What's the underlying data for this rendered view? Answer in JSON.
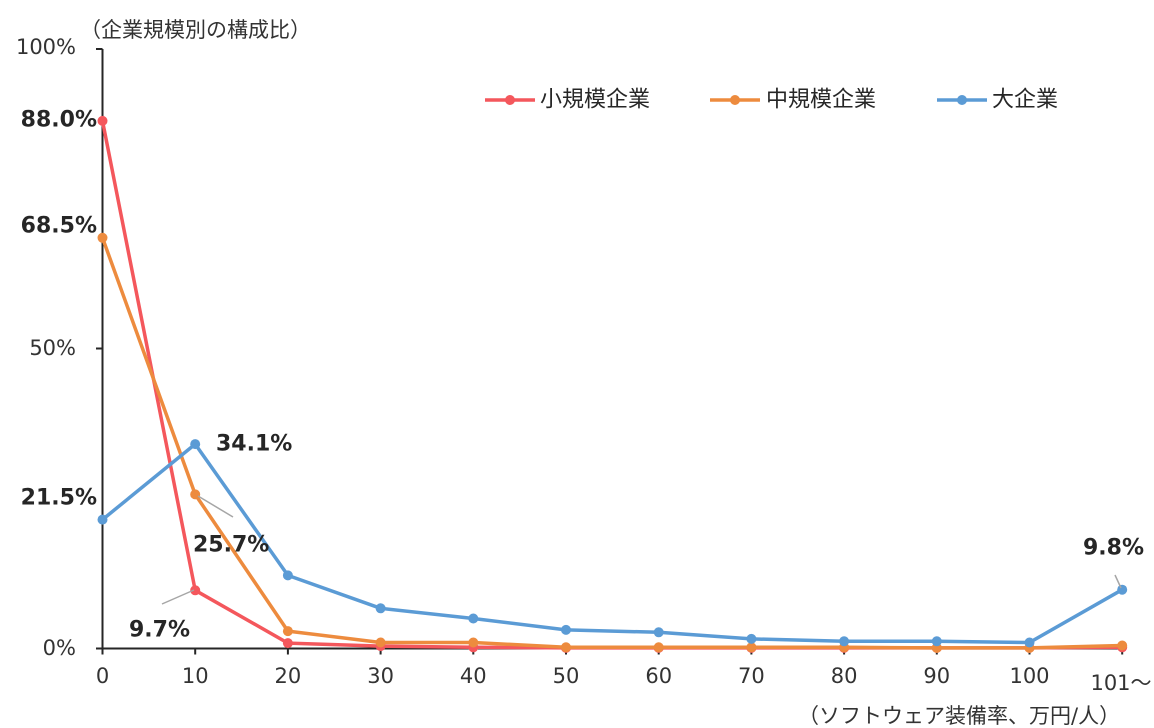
{
  "chart_data": {
    "type": "line",
    "title": "",
    "ylabel": "（企業規模別の構成比）",
    "xlabel": "（ソフトウェア装備率、万円/人）",
    "categories": [
      "0",
      "10",
      "20",
      "30",
      "40",
      "50",
      "60",
      "70",
      "80",
      "90",
      "100",
      "101～"
    ],
    "yticks": [
      "0%",
      "50%",
      "100%"
    ],
    "ylim": [
      0,
      100
    ],
    "grid": false,
    "legend_position": "top-right",
    "series": [
      {
        "name": "小規模企業",
        "color": "#F4575C",
        "values": [
          88.0,
          9.7,
          0.9,
          0.4,
          0.2,
          0.1,
          0.1,
          0.1,
          0.1,
          0.1,
          0.1,
          0.2
        ]
      },
      {
        "name": "中規模企業",
        "color": "#ED8B3E",
        "values": [
          68.5,
          25.7,
          2.9,
          1.0,
          1.0,
          0.2,
          0.2,
          0.2,
          0.2,
          0.1,
          0.1,
          0.5
        ]
      },
      {
        "name": "大企業",
        "color": "#5B9BD5",
        "values": [
          21.5,
          34.1,
          12.2,
          6.7,
          5.0,
          3.1,
          2.7,
          1.6,
          1.2,
          1.2,
          1.0,
          9.8
        ]
      }
    ],
    "annotations": [
      {
        "text": "88.0%",
        "series": "小規模企業",
        "category": "0"
      },
      {
        "text": "68.5%",
        "series": "中規模企業",
        "category": "0"
      },
      {
        "text": "21.5%",
        "series": "大企業",
        "category": "0"
      },
      {
        "text": "34.1%",
        "series": "大企業",
        "category": "10"
      },
      {
        "text": "25.7%",
        "series": "中規模企業",
        "category": "10"
      },
      {
        "text": "9.7%",
        "series": "小規模企業",
        "category": "10"
      },
      {
        "text": "9.8%",
        "series": "大企業",
        "category": "101～"
      }
    ]
  },
  "styles": {
    "axis_color": "#262626",
    "leader_color": "#A6A6A6",
    "text_color": "#333333"
  }
}
